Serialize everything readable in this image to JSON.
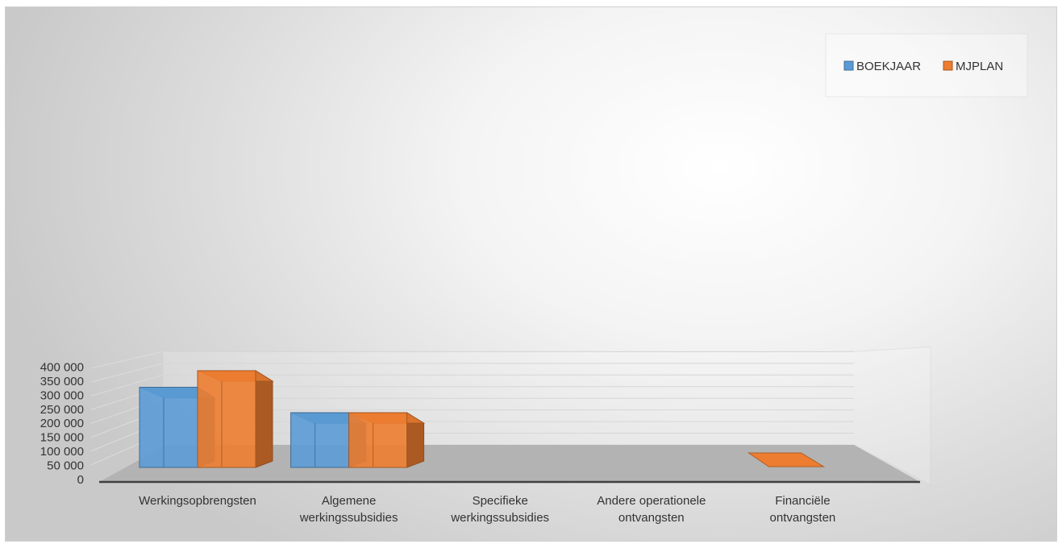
{
  "chart_data": {
    "type": "bar",
    "style": "3d-clustered-column",
    "categories": [
      [
        "Werkingsopbrengsten"
      ],
      [
        "Algemene",
        "werkingssubsidies"
      ],
      [
        "Specifieke",
        "werkingssubsidies"
      ],
      [
        "Andere operationele",
        "ontvangsten"
      ],
      [
        "Financiële",
        "ontvangsten"
      ]
    ],
    "series": [
      {
        "name": "BOEKJAAR",
        "color": "#5B9BD5",
        "values": [
          290000,
          198000,
          0,
          0,
          0
        ]
      },
      {
        "name": "MJPLAN",
        "color": "#ED7D31",
        "values": [
          350000,
          198000,
          0,
          0,
          0
        ]
      }
    ],
    "yticks": [
      "0",
      "50 000",
      "100 000",
      "150 000",
      "200 000",
      "250 000",
      "300 000",
      "350 000",
      "400 000"
    ],
    "ylim": [
      0,
      400000
    ],
    "grid": true,
    "legend_position": "top-right",
    "title": "",
    "xlabel": "",
    "ylabel": ""
  }
}
